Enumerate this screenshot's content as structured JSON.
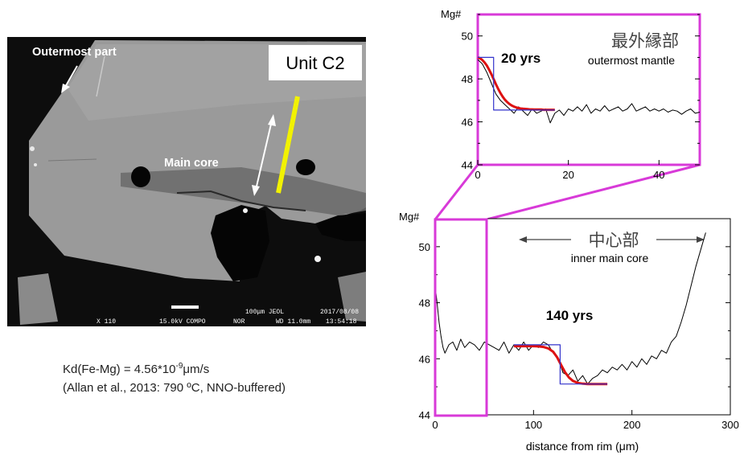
{
  "sem": {
    "unit_label": "Unit C2",
    "outermost_label": "Outermost part",
    "main_core_label": "Main core",
    "footer": {
      "magnification": "X 110",
      "voltage_mode": "15.0kV COMPO",
      "mode": "NOR",
      "scale": "100μm JEOL",
      "working_distance": "WD 11.0mm",
      "date": "2017/08/08",
      "time": "13:54:18"
    }
  },
  "kd": {
    "line1_prefix": "Kd(Fe-Mg) = 4.56*10",
    "line1_exp": "-9",
    "line1_suffix": "μm/s",
    "line2": "(Allan et al., 2013: 790 ºC, NNO-buffered)"
  },
  "chart_data": [
    {
      "id": "top",
      "type": "line",
      "ylabel": "Mg#",
      "xlim": [
        0,
        49
      ],
      "ylim": [
        44,
        51
      ],
      "xticks": [
        0,
        20,
        40
      ],
      "xtick_labels": [
        "0",
        "20",
        "40"
      ],
      "yticks": [
        44,
        46,
        48,
        50
      ],
      "title_jp": "最外縁部",
      "title_en": "outermost mantle",
      "annotation": "20 yrs",
      "series": [
        {
          "role": "measured",
          "color": "#000000",
          "x": [
            0,
            1,
            2,
            3,
            4,
            5,
            6,
            7,
            8,
            9,
            10,
            11,
            12,
            13,
            14,
            15,
            16,
            17,
            18,
            19,
            20,
            21,
            22,
            23,
            24,
            25,
            26,
            27,
            28,
            29,
            30,
            31,
            32,
            33,
            34,
            35,
            36,
            37,
            38,
            39,
            40,
            41,
            42,
            43,
            44,
            45,
            46,
            47,
            48,
            49
          ],
          "y": [
            48.9,
            48.7,
            48.3,
            47.8,
            47.3,
            47.0,
            46.8,
            46.6,
            46.4,
            46.7,
            46.5,
            46.3,
            46.6,
            46.4,
            46.5,
            46.6,
            45.95,
            46.4,
            46.55,
            46.3,
            46.6,
            46.5,
            46.7,
            46.5,
            46.8,
            46.4,
            46.6,
            46.5,
            46.75,
            46.5,
            46.6,
            46.7,
            46.5,
            46.6,
            46.85,
            46.5,
            46.6,
            46.7,
            46.5,
            46.6,
            46.5,
            46.6,
            46.45,
            46.55,
            46.5,
            46.35,
            46.5,
            46.6,
            46.4,
            46.45
          ]
        },
        {
          "role": "model",
          "color": "#dd1111",
          "x": [
            0,
            0.5,
            1,
            1.5,
            2,
            2.5,
            3,
            3.5,
            4,
            4.5,
            5,
            5.5,
            6,
            6.5,
            7,
            7.5,
            8,
            8.5,
            9,
            9.5,
            10,
            10.5,
            11,
            11.5,
            12,
            12.5,
            13,
            13.5,
            14,
            14.5,
            15,
            15.5,
            16,
            16.5,
            17
          ],
          "y": [
            49.0,
            48.96,
            48.88,
            48.77,
            48.62,
            48.43,
            48.22,
            47.99,
            47.76,
            47.54,
            47.34,
            47.17,
            47.03,
            46.92,
            46.83,
            46.76,
            46.71,
            46.67,
            46.64,
            46.62,
            46.61,
            46.6,
            46.59,
            46.58,
            46.58,
            46.57,
            46.57,
            46.57,
            46.57,
            46.56,
            46.56,
            46.56,
            46.56,
            46.56,
            46.56
          ]
        },
        {
          "role": "initial",
          "color": "#3333cc",
          "x": [
            0,
            3.5,
            3.5,
            17
          ],
          "y": [
            49.0,
            49.0,
            46.55,
            46.55
          ]
        }
      ]
    },
    {
      "id": "bottom",
      "type": "line",
      "ylabel": "Mg#",
      "xlabel": "distance from rim (μm)",
      "xlim": [
        0,
        300
      ],
      "ylim": [
        44,
        51
      ],
      "xticks": [
        0,
        100,
        200,
        300
      ],
      "xtick_labels": [
        "0",
        "100",
        "200",
        "300"
      ],
      "yticks": [
        44,
        46,
        48,
        50
      ],
      "title_jp": "中心部",
      "title_en": "inner main core",
      "annotation": "140 yrs",
      "series": [
        {
          "role": "measured",
          "color": "#000000",
          "x": [
            0,
            2,
            4,
            6,
            8,
            10,
            14,
            18,
            22,
            26,
            30,
            35,
            40,
            45,
            50,
            55,
            60,
            65,
            70,
            75,
            80,
            85,
            90,
            95,
            100,
            105,
            110,
            115,
            120,
            125,
            130,
            135,
            140,
            145,
            150,
            155,
            160,
            165,
            170,
            175,
            180,
            185,
            190,
            195,
            200,
            205,
            210,
            215,
            220,
            225,
            230,
            235,
            240,
            245,
            250,
            255,
            260,
            265,
            270,
            275
          ],
          "y": [
            48.6,
            48.0,
            47.3,
            46.8,
            46.4,
            46.2,
            46.5,
            46.6,
            46.3,
            46.7,
            46.4,
            46.6,
            46.5,
            46.3,
            46.6,
            46.5,
            46.4,
            46.3,
            46.6,
            46.2,
            46.5,
            46.3,
            46.6,
            46.3,
            46.5,
            46.4,
            46.6,
            46.5,
            46.2,
            46.0,
            45.5,
            45.4,
            45.6,
            45.2,
            45.4,
            45.1,
            45.3,
            45.4,
            45.6,
            45.5,
            45.7,
            45.6,
            45.8,
            45.6,
            45.9,
            45.7,
            46.0,
            45.8,
            46.1,
            46.0,
            46.3,
            46.2,
            46.6,
            46.8,
            47.3,
            47.9,
            48.6,
            49.3,
            49.9,
            50.5
          ]
        },
        {
          "role": "model",
          "color": "#dd1111",
          "x": [
            80,
            90,
            100,
            105,
            110,
            115,
            120,
            124,
            128,
            132,
            136,
            140,
            145,
            150,
            155,
            160,
            165,
            170,
            175
          ],
          "y": [
            46.45,
            46.45,
            46.45,
            46.44,
            46.42,
            46.37,
            46.25,
            46.05,
            45.78,
            45.52,
            45.33,
            45.21,
            45.14,
            45.11,
            45.1,
            45.1,
            45.1,
            45.1,
            45.1
          ]
        },
        {
          "role": "initial",
          "color": "#3333cc",
          "x": [
            80,
            127,
            127,
            175
          ],
          "y": [
            46.5,
            46.5,
            45.1,
            45.1
          ]
        }
      ]
    }
  ]
}
